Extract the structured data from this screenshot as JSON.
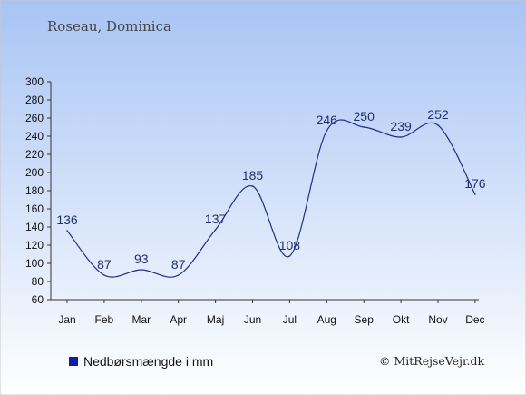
{
  "location_title": "Roseau, Dominica",
  "legend": {
    "label": "Nedbørsmængde i mm",
    "swatch_color": "#0a1ea8"
  },
  "copyright": "© MitRejseVejr.dk",
  "colors": {
    "line": "#1f2e8a",
    "background_top": "#a8c4f4",
    "background_bottom": "#ffffff"
  },
  "chart_data": {
    "type": "line",
    "title": "",
    "xlabel": "",
    "ylabel": "",
    "categories": [
      "Jan",
      "Feb",
      "Mar",
      "Apr",
      "Maj",
      "Jun",
      "Jul",
      "Aug",
      "Sep",
      "Okt",
      "Nov",
      "Dec"
    ],
    "series": [
      {
        "values": [
          136,
          87,
          93,
          87,
          137,
          185,
          108,
          246,
          250,
          239,
          252,
          176
        ]
      }
    ],
    "ylim": [
      60,
      300
    ],
    "yticks": [
      60,
      80,
      100,
      120,
      140,
      160,
      180,
      200,
      220,
      240,
      260,
      280,
      300
    ],
    "grid": false,
    "legend_position": "bottom-left"
  }
}
